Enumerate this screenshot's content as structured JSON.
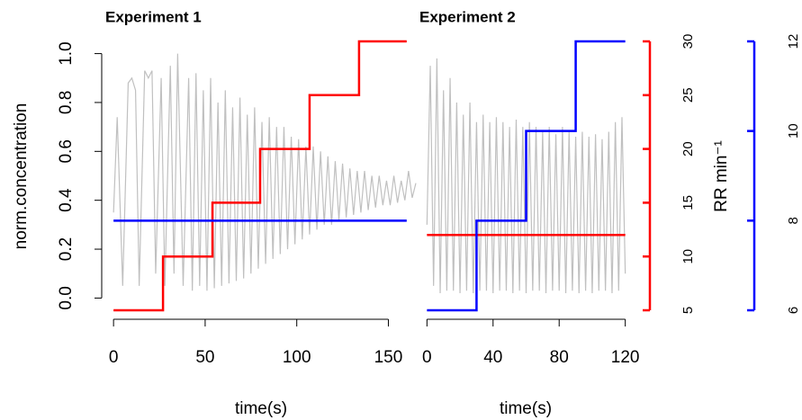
{
  "chart_data": [
    {
      "type": "line",
      "title": "Experiment 1",
      "xlabel": "time(s)",
      "ylabel": "norm.concentration",
      "xlim": [
        -4,
        165
      ],
      "xticks": [
        0,
        50,
        100,
        150
      ],
      "ylim": [
        -0.05,
        1.05
      ],
      "yticks": [
        {
          "value": 0,
          "label": "0.0"
        },
        0.2,
        0.4,
        0.6,
        0.8,
        {
          "value": 1,
          "label": "1.0"
        }
      ],
      "series": [
        {
          "color": "#c0c0c0",
          "axis": "y",
          "x": [
            0,
            2,
            5,
            8,
            10,
            12,
            14,
            17,
            19,
            21,
            23,
            26,
            28,
            31,
            33,
            35,
            38,
            41,
            43,
            45,
            47,
            49,
            51,
            53,
            55,
            57,
            59,
            61,
            63,
            65,
            67,
            69,
            71,
            73,
            75,
            77,
            79,
            81,
            83,
            85,
            87,
            89,
            91,
            93,
            95,
            97,
            99,
            101,
            103,
            105,
            107,
            109,
            111,
            113,
            115,
            117,
            119,
            121,
            123,
            125,
            127,
            129,
            131,
            133,
            135,
            137,
            139,
            141,
            143,
            145,
            147,
            149,
            151,
            153,
            155,
            157,
            159,
            161,
            163,
            165
          ],
          "values": [
            0.35,
            0.74,
            0.05,
            0.88,
            0.9,
            0.85,
            0.05,
            0.93,
            0.9,
            0.93,
            0.1,
            0.9,
            0.05,
            0.95,
            0.1,
            1.0,
            0.05,
            0.9,
            0.03,
            0.92,
            0.05,
            0.85,
            0.03,
            0.9,
            0.04,
            0.8,
            0.05,
            0.85,
            0.06,
            0.78,
            0.07,
            0.82,
            0.08,
            0.75,
            0.1,
            0.78,
            0.12,
            0.72,
            0.14,
            0.74,
            0.16,
            0.7,
            0.18,
            0.7,
            0.2,
            0.66,
            0.22,
            0.65,
            0.24,
            0.62,
            0.26,
            0.62,
            0.28,
            0.6,
            0.3,
            0.58,
            0.3,
            0.56,
            0.32,
            0.55,
            0.33,
            0.53,
            0.34,
            0.52,
            0.35,
            0.52,
            0.36,
            0.5,
            0.37,
            0.5,
            0.38,
            0.48,
            0.38,
            0.5,
            0.39,
            0.48,
            0.4,
            0.52,
            0.41,
            0.47
          ]
        },
        {
          "color": "#ff0000",
          "axis": "y2",
          "x": [
            0,
            27,
            27,
            54,
            54,
            80,
            80,
            107,
            107,
            134,
            134,
            160
          ],
          "values": [
            5,
            5,
            10,
            10,
            15,
            15,
            20,
            20,
            25,
            25,
            30,
            30
          ]
        },
        {
          "color": "#0000ff",
          "axis": "y3",
          "x": [
            0,
            160
          ],
          "values": [
            8,
            8
          ]
        }
      ]
    },
    {
      "type": "line",
      "title": "Experiment 2",
      "xlabel": "time(s)",
      "xlim": [
        -4,
        124
      ],
      "xticks": [
        0,
        40,
        80,
        120
      ],
      "y2label": "RR min⁻¹",
      "y2color": "#ff0000",
      "y2lim": [
        5,
        30
      ],
      "y2ticks": [
        5,
        10,
        15,
        20,
        25,
        30
      ],
      "y3color": "#0000ff",
      "y3lim": [
        6,
        12
      ],
      "y3ticks": [
        6,
        8,
        10,
        12
      ],
      "series": [
        {
          "color": "#c0c0c0",
          "axis": "y",
          "x": [
            0,
            2,
            4,
            6,
            8,
            10,
            12,
            14,
            16,
            18,
            20,
            22,
            24,
            26,
            28,
            30,
            32,
            34,
            36,
            38,
            40,
            42,
            44,
            46,
            48,
            50,
            52,
            54,
            56,
            58,
            60,
            62,
            64,
            66,
            68,
            70,
            72,
            74,
            76,
            78,
            80,
            82,
            84,
            86,
            88,
            90,
            92,
            94,
            96,
            98,
            100,
            102,
            104,
            106,
            108,
            110,
            112,
            114,
            116,
            118,
            120
          ],
          "values": [
            0.3,
            0.95,
            0.05,
            0.98,
            0.02,
            0.85,
            0.03,
            0.9,
            0.03,
            0.8,
            0.02,
            0.75,
            0.03,
            0.8,
            0.02,
            0.72,
            0.03,
            0.75,
            0.03,
            0.72,
            0.02,
            0.74,
            0.03,
            0.72,
            0.03,
            0.7,
            0.02,
            0.73,
            0.03,
            0.7,
            0.02,
            0.72,
            0.03,
            0.7,
            0.03,
            0.68,
            0.02,
            0.7,
            0.03,
            0.67,
            0.03,
            0.7,
            0.02,
            0.68,
            0.03,
            0.66,
            0.02,
            0.68,
            0.03,
            0.66,
            0.02,
            0.67,
            0.03,
            0.65,
            0.03,
            0.68,
            0.02,
            0.72,
            0.03,
            0.74,
            0.1
          ]
        },
        {
          "color": "#ff0000",
          "axis": "y2",
          "x": [
            0,
            120
          ],
          "values": [
            12,
            12
          ]
        },
        {
          "color": "#0000ff",
          "axis": "y3",
          "x": [
            0,
            30,
            30,
            60,
            60,
            90,
            90,
            120
          ],
          "values": [
            6,
            6,
            8,
            8,
            10,
            10,
            12,
            12
          ]
        }
      ]
    }
  ]
}
